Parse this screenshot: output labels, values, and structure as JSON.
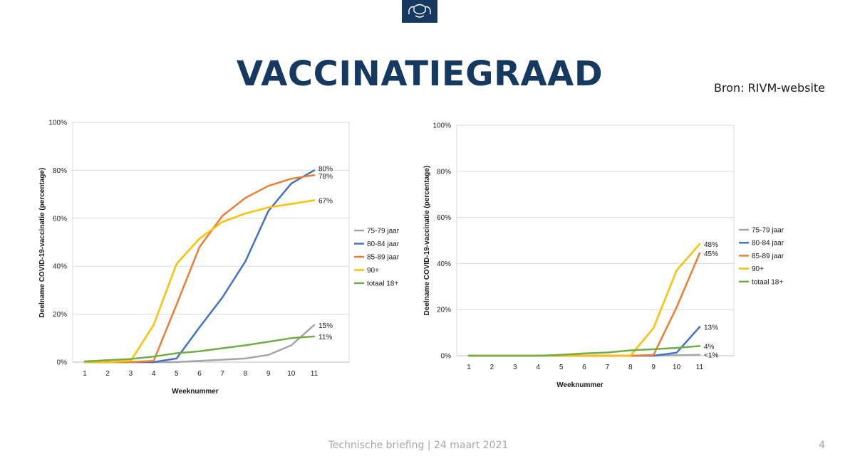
{
  "slide": {
    "title": "VACCINATIEGRAAD",
    "source": "Bron: RIVM-website",
    "footer": "Technische briefing | 24 maart 2021",
    "page_number": "4",
    "logo_color": "#163a5f"
  },
  "chart_data": [
    {
      "type": "line",
      "title": "",
      "xlabel": "Weeknummer",
      "ylabel": "Deelname COVID-19-vaccinatie (percentage)",
      "x": [
        1,
        2,
        3,
        4,
        5,
        6,
        7,
        8,
        9,
        10,
        11
      ],
      "xticks": [
        "1",
        "2",
        "3",
        "4",
        "5",
        "6",
        "7",
        "8",
        "9",
        "10",
        "11"
      ],
      "ylim": [
        0,
        100
      ],
      "yticks": [
        "0%",
        "20%",
        "40%",
        "60%",
        "80%",
        "100%"
      ],
      "grid": "horizontal",
      "legend": "right",
      "series": [
        {
          "name": "75-79 jaar",
          "color": "#a5a5a5",
          "values": [
            0,
            0,
            0,
            0,
            0,
            0.5,
            1,
            1.5,
            3,
            7,
            15.5
          ],
          "end_label": "15%"
        },
        {
          "name": "80-84 jaar",
          "color": "#4472c4",
          "values": [
            0,
            0,
            0,
            0,
            1.5,
            14.5,
            27,
            42,
            63,
            74.5,
            80
          ],
          "end_label": "80%"
        },
        {
          "name": "85-89 jaar",
          "color": "#ed7d31",
          "values": [
            0,
            0,
            0,
            0.5,
            24,
            48,
            61,
            68.5,
            73.5,
            76.5,
            78
          ],
          "end_label": "78%"
        },
        {
          "name": "90+",
          "color": "#ffc000",
          "values": [
            0,
            0,
            0.5,
            15.5,
            41,
            51.5,
            58.5,
            62,
            64.5,
            66,
            67.5
          ],
          "end_label": "67%"
        },
        {
          "name": "totaal 18+",
          "color": "#70ad47",
          "values": [
            0.3,
            0.8,
            1.3,
            2.3,
            3.7,
            4.5,
            5.8,
            7,
            8.5,
            10,
            10.7
          ],
          "end_label": "11%"
        }
      ]
    },
    {
      "type": "line",
      "title": "",
      "xlabel": "Weeknummer",
      "ylabel": "Deelname COVID-19-vaccinatie (percentage)",
      "x": [
        1,
        2,
        3,
        4,
        5,
        6,
        7,
        8,
        9,
        10,
        11
      ],
      "xticks": [
        "1",
        "2",
        "3",
        "4",
        "5",
        "6",
        "7",
        "8",
        "9",
        "10",
        "11"
      ],
      "ylim": [
        0,
        100
      ],
      "yticks": [
        "0%",
        "20%",
        "40%",
        "60%",
        "80%",
        "100%"
      ],
      "grid": "horizontal",
      "legend": "right",
      "series": [
        {
          "name": "75-79 jaar",
          "color": "#a5a5a5",
          "values": [
            0,
            0,
            0,
            0,
            0,
            0,
            0,
            0,
            0,
            0.2,
            0.4
          ],
          "end_label": "<1%"
        },
        {
          "name": "80-84 jaar",
          "color": "#4472c4",
          "values": [
            0,
            0,
            0,
            0,
            0,
            0,
            0,
            0,
            0,
            1.3,
            12.5
          ],
          "end_label": "13%"
        },
        {
          "name": "85-89 jaar",
          "color": "#ed7d31",
          "values": [
            0,
            0,
            0,
            0,
            0,
            0,
            0,
            0,
            0.3,
            21,
            44.5
          ],
          "end_label": "45%"
        },
        {
          "name": "90+",
          "color": "#ffc000",
          "values": [
            0,
            0,
            0,
            0,
            0,
            0,
            0,
            0,
            12,
            37,
            48.5
          ],
          "end_label": "48%"
        },
        {
          "name": "totaal 18+",
          "color": "#70ad47",
          "values": [
            0,
            0,
            0,
            0,
            0.4,
            1,
            1.4,
            2.3,
            2.8,
            3.4,
            4.2
          ],
          "end_label": "4%"
        }
      ]
    }
  ]
}
